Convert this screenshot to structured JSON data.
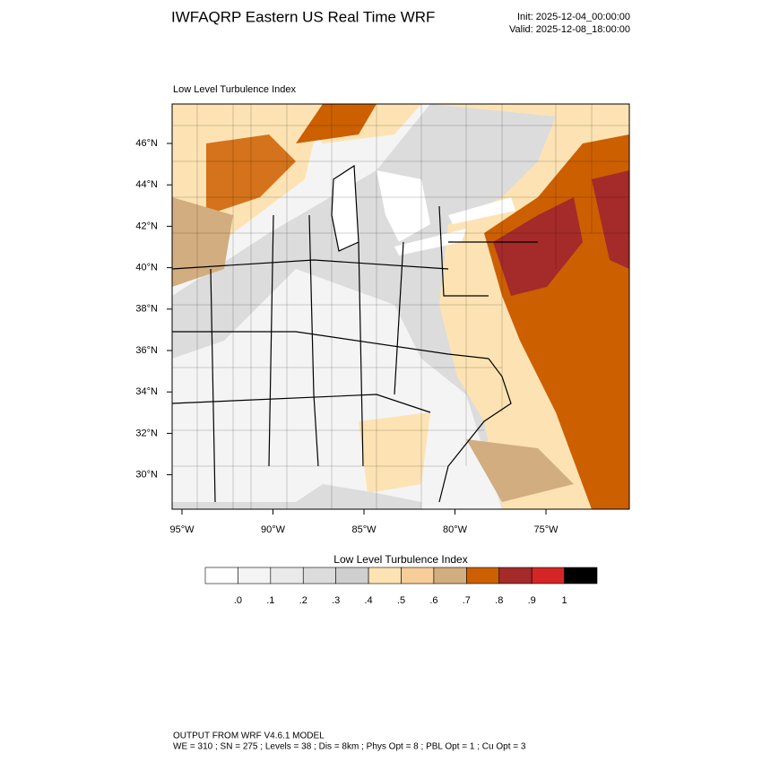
{
  "header": {
    "title": "IWFAQRP Eastern US Real Time WRF",
    "init": "Init: 2025-12-04_00:00:00",
    "valid": "Valid: 2025-12-08_18:00:00"
  },
  "map": {
    "label": "Low Level Turbulence Index",
    "lat_ticks": [
      {
        "value": 46,
        "label": "46°N"
      },
      {
        "value": 44,
        "label": "44°N"
      },
      {
        "value": 42,
        "label": "42°N"
      },
      {
        "value": 40,
        "label": "40°N"
      },
      {
        "value": 38,
        "label": "38°N"
      },
      {
        "value": 36,
        "label": "36°N"
      },
      {
        "value": 34,
        "label": "34°N"
      },
      {
        "value": 32,
        "label": "32°N"
      },
      {
        "value": 30,
        "label": "30°N"
      }
    ],
    "lon_ticks": [
      {
        "value": -95,
        "label": "95°W"
      },
      {
        "value": -90,
        "label": "90°W"
      },
      {
        "value": -85,
        "label": "85°W"
      },
      {
        "value": -80,
        "label": "80°W"
      },
      {
        "value": -75,
        "label": "75°W"
      }
    ]
  },
  "colorbar": {
    "title": "Low Level Turbulence Index",
    "colors": [
      "#ffffff",
      "#f4f4f4",
      "#eaeaea",
      "#dcdcdc",
      "#cfcfcf",
      "#fde3b3",
      "#f6cd98",
      "#d2ad80",
      "#cc5f00",
      "#a52a2a",
      "#d42626",
      "#000000"
    ],
    "ticks": [
      {
        "value": 0,
        "label": ".0"
      },
      {
        "value": 0.1,
        "label": ".1"
      },
      {
        "value": 0.2,
        "label": ".2"
      },
      {
        "value": 0.3,
        "label": ".3"
      },
      {
        "value": 0.4,
        "label": ".4"
      },
      {
        "value": 0.5,
        "label": ".5"
      },
      {
        "value": 0.6,
        "label": ".6"
      },
      {
        "value": 0.7,
        "label": ".7"
      },
      {
        "value": 0.8,
        "label": ".8"
      },
      {
        "value": 0.9,
        "label": ".9"
      },
      {
        "value": 1,
        "label": "1"
      }
    ]
  },
  "footer": {
    "line1": "OUTPUT FROM WRF V4.6.1 MODEL",
    "line2": "WE = 310 ; SN = 275 ; Levels = 38 ; Dis = 8km ; Phys Opt = 8 ; PBL Opt = 1 ; Cu Opt = 3"
  }
}
